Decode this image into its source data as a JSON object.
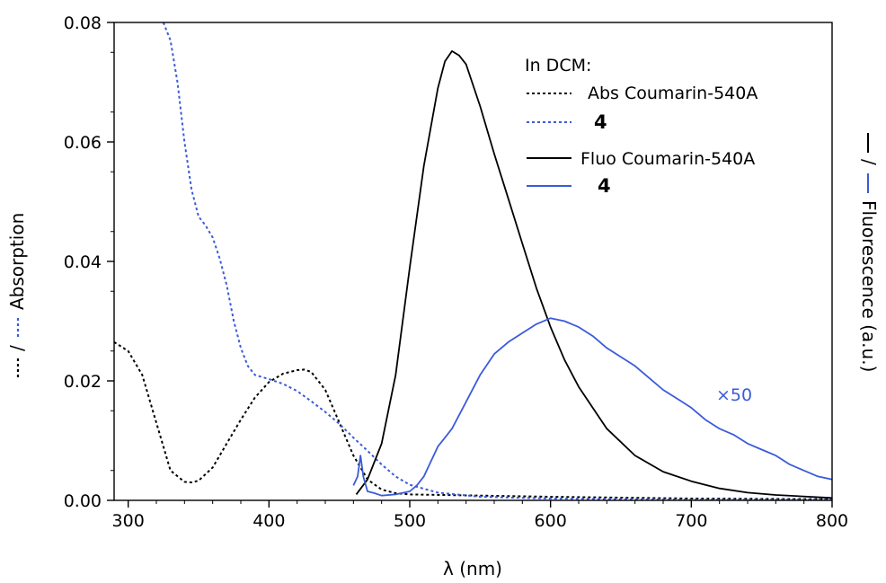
{
  "chart_data": {
    "type": "line",
    "xlabel": "λ (nm)",
    "ylabel": "Absorption",
    "ylabel_right": "Fluorescence (a.u.)",
    "xlim": [
      290,
      800
    ],
    "ylim": [
      0,
      0.08
    ],
    "x_ticks": [
      "300",
      "400",
      "500",
      "600",
      "700",
      "800"
    ],
    "y_ticks": [
      "0.00",
      "0.02",
      "0.04",
      "0.06",
      "0.08"
    ],
    "grid": false,
    "legend": {
      "title": "In DCM:",
      "position": "top-right",
      "entries": [
        "Abs Coumarin-540A",
        "4",
        "Fluo Coumarin-540A",
        "4"
      ]
    },
    "annotation": "×50",
    "colors": {
      "black": "#000000",
      "blue": "#3a5bd9"
    },
    "series": [
      {
        "name": "Abs Coumarin-540A",
        "color": "#000000",
        "style": "dotted",
        "x": [
          290,
          300,
          310,
          320,
          330,
          340,
          345,
          350,
          360,
          370,
          380,
          390,
          400,
          410,
          420,
          425,
          430,
          440,
          450,
          460,
          470,
          480,
          490,
          500,
          550,
          600,
          700,
          800
        ],
        "y": [
          0.0265,
          0.025,
          0.021,
          0.013,
          0.005,
          0.0031,
          0.003,
          0.0033,
          0.0055,
          0.0095,
          0.0135,
          0.0172,
          0.0198,
          0.0212,
          0.0218,
          0.0219,
          0.0215,
          0.0185,
          0.013,
          0.0075,
          0.0035,
          0.0018,
          0.0012,
          0.001,
          0.0008,
          0.0006,
          0.0003,
          0.0002
        ]
      },
      {
        "name": "4",
        "color": "#3a5bd9",
        "style": "dotted",
        "x": [
          325,
          330,
          335,
          340,
          345,
          350,
          355,
          360,
          365,
          370,
          375,
          380,
          385,
          390,
          400,
          410,
          420,
          430,
          440,
          450,
          460,
          470,
          480,
          490,
          500,
          520,
          550,
          600,
          650,
          700,
          800
        ],
        "y": [
          0.08,
          0.077,
          0.07,
          0.06,
          0.052,
          0.0475,
          0.046,
          0.044,
          0.0405,
          0.036,
          0.03,
          0.0255,
          0.0225,
          0.021,
          0.0203,
          0.0195,
          0.0183,
          0.0166,
          0.0148,
          0.0128,
          0.0105,
          0.0083,
          0.006,
          0.004,
          0.0026,
          0.0013,
          0.0006,
          0.0003,
          0.0002,
          0.0001,
          0.0001
        ]
      },
      {
        "name": "Fluo Coumarin-540A",
        "color": "#000000",
        "style": "solid",
        "x": [
          462,
          470,
          480,
          490,
          500,
          510,
          520,
          525,
          530,
          535,
          540,
          550,
          560,
          570,
          580,
          590,
          600,
          610,
          620,
          640,
          660,
          680,
          700,
          720,
          740,
          760,
          800
        ],
        "y": [
          0.001,
          0.0035,
          0.0095,
          0.021,
          0.039,
          0.056,
          0.069,
          0.0735,
          0.0752,
          0.0745,
          0.073,
          0.066,
          0.058,
          0.0505,
          0.043,
          0.0355,
          0.029,
          0.0235,
          0.019,
          0.012,
          0.0075,
          0.0048,
          0.0032,
          0.002,
          0.0013,
          0.0009,
          0.0004
        ]
      },
      {
        "name": "4",
        "color": "#3a5bd9",
        "style": "solid",
        "x": [
          460,
          463,
          465,
          467,
          470,
          475,
          480,
          490,
          500,
          505,
          510,
          515,
          520,
          525,
          530,
          540,
          550,
          560,
          570,
          580,
          590,
          600,
          610,
          620,
          630,
          640,
          650,
          660,
          670,
          680,
          690,
          700,
          710,
          720,
          730,
          740,
          750,
          760,
          770,
          780,
          790,
          800
        ],
        "y": [
          0.0025,
          0.004,
          0.0075,
          0.004,
          0.0015,
          0.0012,
          0.0008,
          0.001,
          0.0015,
          0.0025,
          0.004,
          0.0065,
          0.009,
          0.0105,
          0.012,
          0.0165,
          0.021,
          0.0245,
          0.0265,
          0.028,
          0.0295,
          0.0305,
          0.03,
          0.029,
          0.0275,
          0.0255,
          0.024,
          0.0225,
          0.0205,
          0.0185,
          0.017,
          0.0155,
          0.0135,
          0.012,
          0.011,
          0.0095,
          0.0085,
          0.0075,
          0.006,
          0.005,
          0.004,
          0.0035
        ]
      }
    ]
  }
}
